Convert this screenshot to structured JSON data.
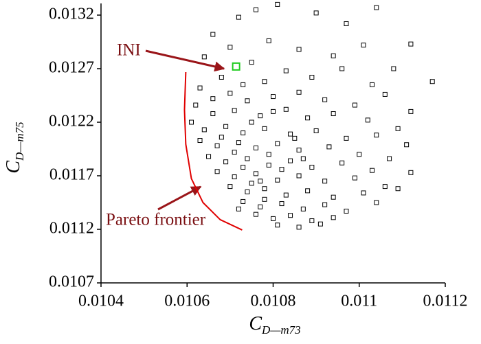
{
  "chart_data": {
    "type": "scatter",
    "x_label": {
      "main": "C",
      "sub": "D—m73"
    },
    "y_label": {
      "main": "C",
      "sub": "D—m75"
    },
    "xlim": [
      0.0104,
      0.0112
    ],
    "xticks": [
      0.0104,
      0.0106,
      0.0108,
      0.011,
      0.0112
    ],
    "ylim": [
      0.0107,
      0.0133
    ],
    "yticks": [
      0.0107,
      0.0112,
      0.0117,
      0.0122,
      0.0127,
      0.0132
    ],
    "color": "#000000",
    "x": [
      0.01072,
      0.01076,
      0.01081,
      0.0109,
      0.01097,
      0.01104,
      0.01066,
      0.0107,
      0.01079,
      0.01086,
      0.01094,
      0.01101,
      0.01112,
      0.01108,
      0.01117,
      0.01064,
      0.01075,
      0.01083,
      0.01089,
      0.01096,
      0.01103,
      0.01078,
      0.01068,
      0.01063,
      0.0107,
      0.01074,
      0.0108,
      0.01086,
      0.01092,
      0.01099,
      0.01106,
      0.01112,
      0.01062,
      0.01066,
      0.01071,
      0.01077,
      0.01083,
      0.01088,
      0.01094,
      0.01102,
      0.01109,
      0.01061,
      0.01064,
      0.01069,
      0.01073,
      0.01078,
      0.01084,
      0.0109,
      0.01097,
      0.01104,
      0.01111,
      0.01063,
      0.01067,
      0.01072,
      0.01076,
      0.01081,
      0.01086,
      0.01093,
      0.011,
      0.01107,
      0.01065,
      0.01069,
      0.01074,
      0.01079,
      0.01084,
      0.01089,
      0.01096,
      0.01103,
      0.01112,
      0.01067,
      0.01071,
      0.01076,
      0.01081,
      0.01086,
      0.01092,
      0.01099,
      0.01106,
      0.0107,
      0.01074,
      0.01078,
      0.01083,
      0.01088,
      0.01094,
      0.01101,
      0.01109,
      0.01073,
      0.01077,
      0.01082,
      0.01087,
      0.01092,
      0.01097,
      0.01104,
      0.01076,
      0.0108,
      0.01084,
      0.01089,
      0.01094,
      0.01081,
      0.01086,
      0.01091,
      0.01075,
      0.01079,
      0.01073,
      0.01085,
      0.01071,
      0.01068,
      0.01075,
      0.0108,
      0.01066,
      0.01073,
      0.01077,
      0.01082,
      0.01087,
      0.01078,
      0.01072
    ],
    "values": [
      0.01318,
      0.01325,
      0.0133,
      0.01322,
      0.01312,
      0.01327,
      0.01302,
      0.0129,
      0.01296,
      0.01288,
      0.01282,
      0.01292,
      0.01293,
      0.0127,
      0.01258,
      0.01281,
      0.01276,
      0.01268,
      0.01262,
      0.0127,
      0.01255,
      0.01258,
      0.01262,
      0.01252,
      0.01247,
      0.0124,
      0.01244,
      0.01248,
      0.01241,
      0.01236,
      0.01246,
      0.0123,
      0.01236,
      0.01228,
      0.01231,
      0.01226,
      0.01232,
      0.01224,
      0.01228,
      0.01222,
      0.01214,
      0.0122,
      0.01213,
      0.01216,
      0.0121,
      0.01214,
      0.01209,
      0.01212,
      0.01205,
      0.01208,
      0.01199,
      0.01203,
      0.01198,
      0.01201,
      0.01196,
      0.012,
      0.01194,
      0.01197,
      0.0119,
      0.01186,
      0.01188,
      0.01183,
      0.01186,
      0.0118,
      0.01184,
      0.01178,
      0.01182,
      0.01175,
      0.01173,
      0.01174,
      0.01169,
      0.01172,
      0.01166,
      0.0117,
      0.01165,
      0.01168,
      0.0116,
      0.0116,
      0.01155,
      0.01158,
      0.01152,
      0.01156,
      0.0115,
      0.01154,
      0.01158,
      0.01146,
      0.01141,
      0.01144,
      0.01139,
      0.01143,
      0.01137,
      0.01145,
      0.01134,
      0.0113,
      0.01133,
      0.01128,
      0.01131,
      0.01124,
      0.01122,
      0.01125,
      0.01163,
      0.0119,
      0.01178,
      0.01205,
      0.01192,
      0.01206,
      0.0122,
      0.0123,
      0.01242,
      0.01255,
      0.01165,
      0.01176,
      0.01186,
      0.01148,
      0.01139
    ],
    "ini": {
      "label": "INI",
      "x": 0.010714,
      "y": 0.01272,
      "color": "#22cc22"
    },
    "frontier": {
      "label": "Pareto frontier",
      "color": "#e00000",
      "x": [
        0.010597,
        0.010594,
        0.010597,
        0.01061,
        0.010637,
        0.010677,
        0.010728
      ],
      "y": [
        0.012668,
        0.012315,
        0.011995,
        0.011674,
        0.01145,
        0.01129,
        0.011194
      ]
    }
  }
}
